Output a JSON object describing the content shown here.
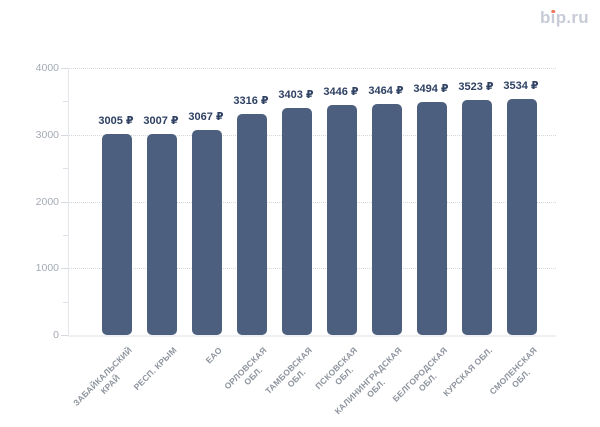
{
  "logo": {
    "text": "bip.ru",
    "color": "#c6cbd7",
    "dot_color": "#f2735c"
  },
  "chart_data": {
    "type": "bar",
    "title": "",
    "xlabel": "",
    "ylabel": "",
    "categories": [
      "ЗАБАЙКАЛЬСКИЙ КРАЙ",
      "РЕСП. КРЫМ",
      "ЕАО",
      "ОРЛОВСКАЯ ОБЛ.",
      "ТАМБОВСКАЯ ОБЛ.",
      "ПСКОВСКАЯ ОБЛ.",
      "КАЛИНИНГРАДСКАЯ ОБЛ.",
      "БЕЛГОРОДСКАЯ ОБЛ.",
      "КУРСКАЯ ОБЛ.",
      "СМОЛЕНСКАЯ ОБЛ."
    ],
    "category_lines": [
      [
        "ЗАБАЙКАЛЬСКИЙ",
        "КРАЙ"
      ],
      [
        "РЕСП. КРЫМ"
      ],
      [
        "ЕАО"
      ],
      [
        "ОРЛОВСКАЯ",
        "ОБЛ."
      ],
      [
        "ТАМБОВСКАЯ",
        "ОБЛ."
      ],
      [
        "ПСКОВСКАЯ",
        "ОБЛ."
      ],
      [
        "КАЛИНИНГРАДСКАЯ",
        "ОБЛ."
      ],
      [
        "БЕЛГОРОДСКАЯ",
        "ОБЛ."
      ],
      [
        "КУРСКАЯ ОБЛ."
      ],
      [
        "СМОЛЕНСКАЯ",
        "ОБЛ."
      ]
    ],
    "values": [
      3005,
      3007,
      3067,
      3316,
      3403,
      3446,
      3464,
      3494,
      3523,
      3534
    ],
    "value_suffix": "₽",
    "ylim": [
      0,
      4000
    ],
    "y_ticks": [
      0,
      1000,
      2000,
      3000,
      4000
    ],
    "y_minor_step": 500,
    "grid": "horizontal-dotted",
    "legend": "none",
    "bar_color": "#4c5f7e",
    "value_label_color": "#2e4163",
    "axis_line_color": "#e3e6ea"
  }
}
